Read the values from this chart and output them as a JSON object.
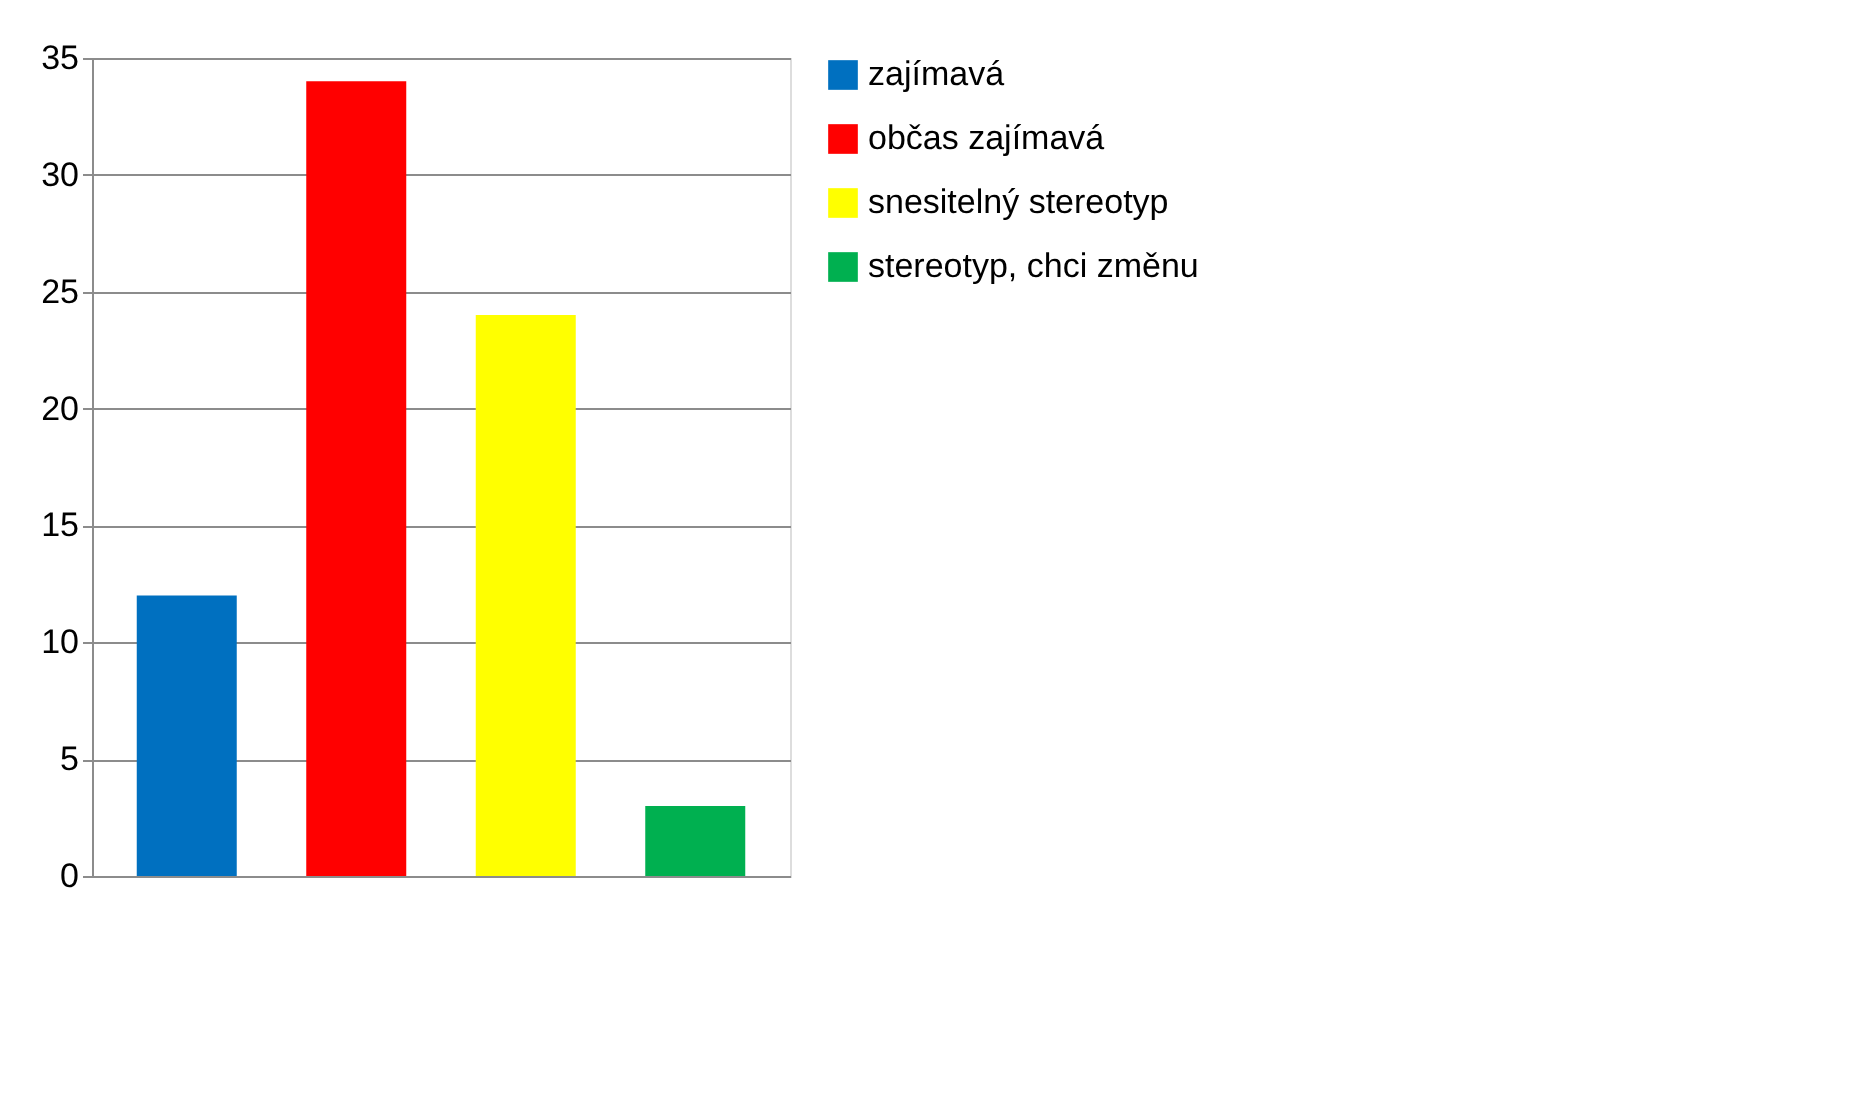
{
  "chart_data": {
    "type": "bar",
    "categories": [
      null,
      null,
      null,
      null
    ],
    "series": [
      {
        "name": "zajímavá",
        "color": "#0070c0",
        "values": [
          12,
          null,
          null,
          null
        ]
      },
      {
        "name": "občas zajímavá",
        "color": "#ff0000",
        "values": [
          null,
          34,
          null,
          null
        ]
      },
      {
        "name": "snesitelný stereotyp",
        "color": "#ffff00",
        "values": [
          null,
          null,
          24,
          null
        ]
      },
      {
        "name": "stereotyp, chci změnu",
        "color": "#00b050",
        "values": [
          null,
          null,
          null,
          3
        ]
      }
    ],
    "ylim": [
      0,
      35
    ],
    "yticks": [
      0,
      5,
      10,
      15,
      20,
      25,
      30,
      35
    ],
    "grid": "y",
    "legend": "right"
  }
}
